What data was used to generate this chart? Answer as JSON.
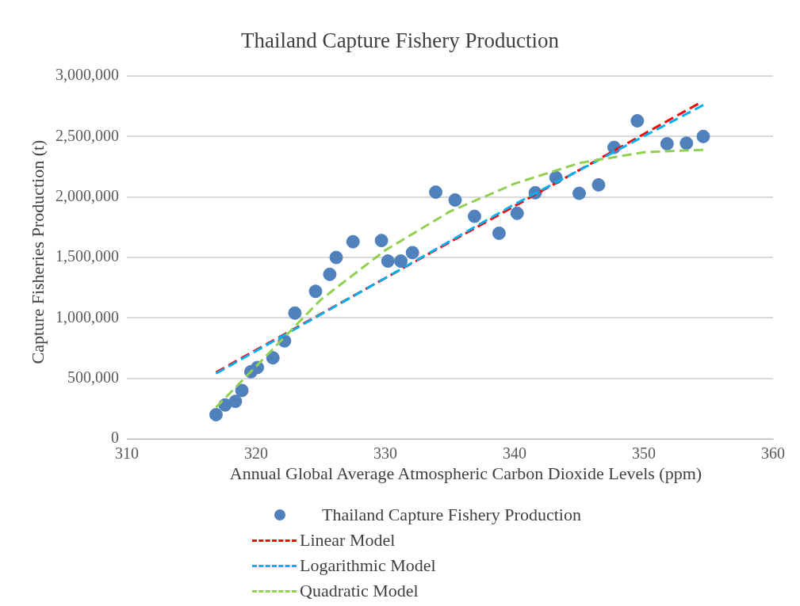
{
  "chart_data": {
    "type": "scatter",
    "title": "Thailand Capture Fishery Production",
    "xlabel": "Annual Global Average Atmospheric Carbon Dioxide Levels (ppm)",
    "ylabel": "Capture Fisheries Production (t)",
    "xlim": [
      310,
      360
    ],
    "xticks": [
      310,
      320,
      330,
      340,
      350,
      360
    ],
    "ylim": [
      0,
      3000000
    ],
    "yticks": [
      0,
      {
        "value": 500000,
        "label": "500,000"
      },
      {
        "value": 1000000,
        "label": "1,000,000"
      },
      {
        "value": 1500000,
        "label": "1,500,000"
      },
      {
        "value": 2000000,
        "label": "2,000,000"
      },
      {
        "value": 2500000,
        "label": "2,500,000"
      },
      {
        "value": 3000000,
        "label": "3,000,000"
      }
    ],
    "grid": "y",
    "legend": "bottom",
    "series": [
      {
        "name": "Thailand Capture Fishery Production",
        "marker": "circle",
        "color": "#4f81bd",
        "x": [
          316.9,
          317.6,
          318.4,
          318.9,
          319.6,
          320.1,
          321.3,
          322.2,
          323.0,
          324.6,
          325.7,
          326.2,
          327.5,
          329.7,
          330.2,
          331.2,
          332.1,
          333.9,
          335.4,
          336.9,
          338.8,
          340.2,
          341.6,
          343.2,
          345.0,
          346.5,
          347.7,
          349.5,
          351.8,
          353.3,
          354.6
        ],
        "values": [
          200000,
          280000,
          310000,
          400000,
          555000,
          590000,
          670000,
          810000,
          1040000,
          1220000,
          1360000,
          1500000,
          1630000,
          1640000,
          1470000,
          1470000,
          1540000,
          2040000,
          1975000,
          1840000,
          1700000,
          1865000,
          2035000,
          2160000,
          2030000,
          2100000,
          2410000,
          2630000,
          2440000,
          2445000,
          2500000
        ]
      },
      {
        "name": "Linear Model",
        "type": "line",
        "line_style": "dashed",
        "marker": "none",
        "color": "#ff0000",
        "x": [
          316.9,
          354.2
        ],
        "values": [
          550000,
          2770000
        ]
      },
      {
        "name": "Logarithmic Model",
        "type": "line",
        "line_style": "dashed",
        "marker": "none",
        "color": "#00b0f0",
        "x": [
          316.9,
          330,
          340,
          354.6
        ],
        "values": [
          540000,
          1330000,
          1940000,
          2760000
        ]
      },
      {
        "name": "Quadratic Model",
        "type": "line",
        "line_style": "dashed",
        "marker": "none",
        "color": "#92d050",
        "x": [
          316.9,
          320,
          325,
          330,
          335,
          340,
          345,
          350,
          354.6
        ],
        "values": [
          260000,
          600000,
          1150000,
          1560000,
          1880000,
          2110000,
          2280000,
          2370000,
          2390000
        ]
      }
    ]
  }
}
